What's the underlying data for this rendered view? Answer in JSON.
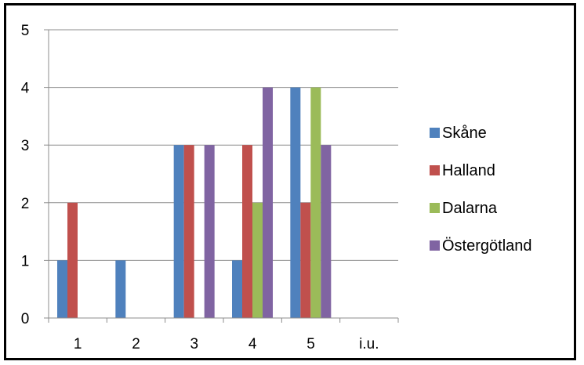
{
  "chart_data": {
    "type": "bar",
    "categories": [
      "1",
      "2",
      "3",
      "4",
      "5",
      "i.u."
    ],
    "series": [
      {
        "name": "Skåne",
        "color": "#4F81BD",
        "values": [
          1,
          1,
          3,
          1,
          4,
          0
        ]
      },
      {
        "name": "Halland",
        "color": "#C0504D",
        "values": [
          2,
          0,
          3,
          3,
          2,
          0
        ]
      },
      {
        "name": "Dalarna",
        "color": "#9BBB59",
        "values": [
          0,
          0,
          0,
          2,
          4,
          0
        ]
      },
      {
        "name": "Östergötland",
        "color": "#8064A2",
        "values": [
          0,
          0,
          3,
          4,
          3,
          0
        ]
      }
    ],
    "y_ticks": [
      "0",
      "1",
      "2",
      "3",
      "4",
      "5"
    ],
    "ylim": [
      0,
      5
    ],
    "grid": true,
    "legend_position": "right"
  }
}
